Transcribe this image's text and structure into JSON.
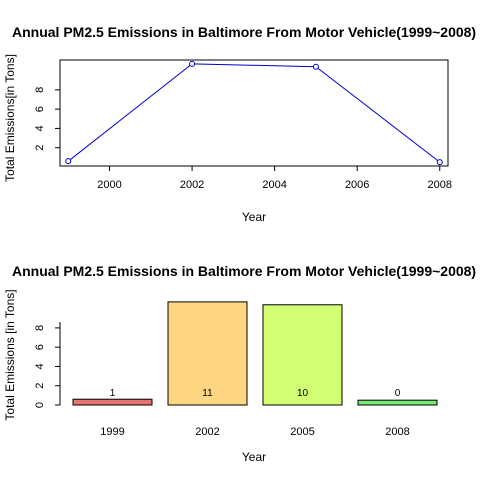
{
  "chart_data": [
    {
      "type": "line",
      "title": "Annual PM2.5 Emissions in Baltimore From Motor Vehicle(1999~2008)",
      "xlabel": "Year",
      "ylabel": "Total Emissions[in Tons]",
      "x": [
        1999,
        2002,
        2005,
        2008
      ],
      "y": [
        0.6,
        10.7,
        10.4,
        0.5
      ],
      "xlim": [
        1998.8,
        2008.2
      ],
      "ylim": [
        0.1,
        11.1
      ],
      "x_ticks": [
        2000,
        2002,
        2004,
        2006,
        2008
      ],
      "y_ticks": [
        2,
        4,
        6,
        8
      ],
      "line_color": "#0000cc",
      "grid": false
    },
    {
      "type": "bar",
      "title": "Annual PM2.5 Emissions in Baltimore From Motor Vehicle(1999~2008)",
      "xlabel": "Year",
      "ylabel": "Total Emissions [in Tons]",
      "categories": [
        "1999",
        "2002",
        "2005",
        "2008"
      ],
      "values": [
        0.6,
        10.7,
        10.4,
        0.5
      ],
      "data_labels": [
        "1",
        "11",
        "10",
        "0"
      ],
      "colors": [
        "#e87470",
        "#fed580",
        "#d3fe74",
        "#78e876"
      ],
      "ylim": [
        0,
        11
      ],
      "y_ticks": [
        0,
        2,
        4,
        6,
        8
      ],
      "grid": false
    }
  ]
}
